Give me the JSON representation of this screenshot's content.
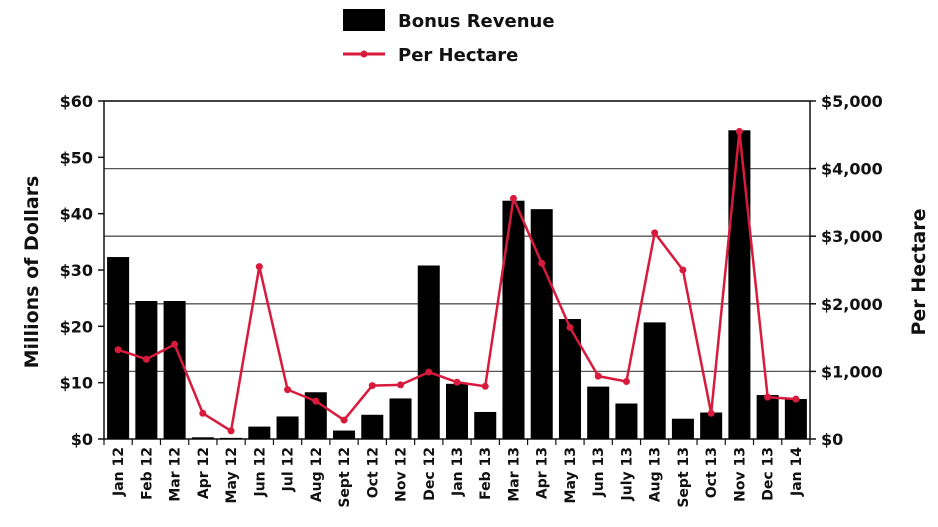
{
  "chart_data": {
    "type": "bar",
    "categories": [
      "Jan 12",
      "Feb 12",
      "Mar 12",
      "Apr 12",
      "May 12",
      "Jun 12",
      "Jul 12",
      "Aug 12",
      "Sept 12",
      "Oct 12",
      "Nov 12",
      "Dec 12",
      "Jan 13",
      "Feb 13",
      "Mar 13",
      "Apr 13",
      "May 13",
      "Jun 13",
      "July 13",
      "Aug 13",
      "Sept 13",
      "Oct 13",
      "Nov 13",
      "Dec 13",
      "Jan 14"
    ],
    "series": [
      {
        "name": "Bonus Revenue",
        "type": "bar",
        "axis": "left",
        "color": "#000000",
        "values": [
          32.3,
          24.5,
          24.5,
          0.3,
          0.2,
          2.2,
          4.0,
          8.3,
          1.5,
          4.3,
          7.2,
          30.8,
          9.8,
          4.8,
          42.3,
          40.8,
          21.3,
          9.3,
          6.3,
          20.7,
          3.6,
          4.7,
          54.8,
          7.8,
          7.1
        ]
      },
      {
        "name": "Per Hectare",
        "type": "line",
        "axis": "right",
        "color": "#d81b3c",
        "values": [
          1320,
          1180,
          1400,
          380,
          120,
          2550,
          730,
          560,
          280,
          790,
          800,
          990,
          840,
          780,
          3560,
          2600,
          1650,
          930,
          850,
          3050,
          2500,
          380,
          4550,
          620,
          590
        ]
      }
    ],
    "ylabel": "Millions of Dollars",
    "y2label": "Per Hectare",
    "ylim": [
      0,
      60
    ],
    "y2lim": [
      0,
      5000
    ],
    "yticks": [
      "$0",
      "$10",
      "$20",
      "$30",
      "$40",
      "$50",
      "$60"
    ],
    "y2ticks": [
      "$0",
      "$1,000",
      "$2,000",
      "$3,000",
      "$4,000",
      "$5,000"
    ],
    "grid": true,
    "legend": "top-center"
  }
}
